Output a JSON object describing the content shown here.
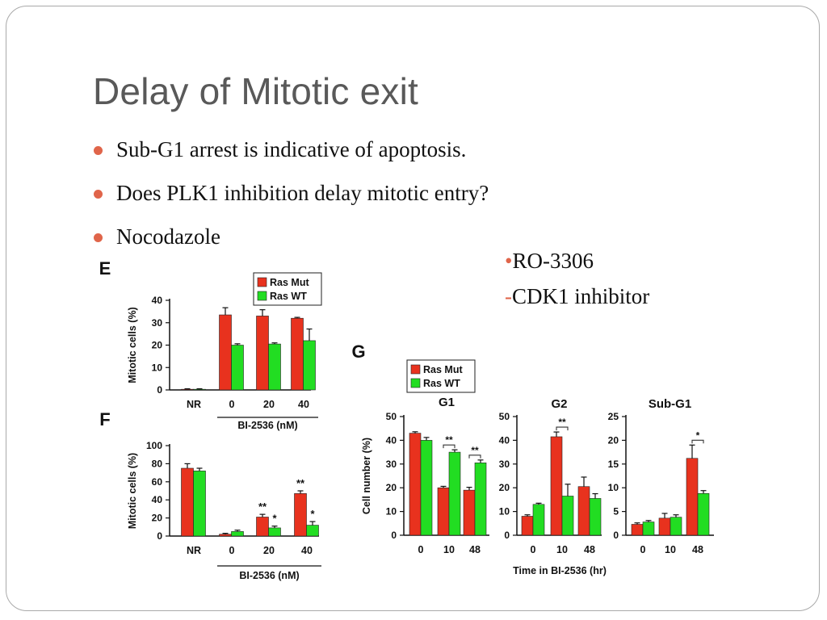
{
  "slide": {
    "title": "Delay of Mitotic exit",
    "bullets": [
      "Sub-G1 arrest is indicative of apoptosis.",
      "Does PLK1 inhibition delay mitotic entry?",
      "Nocodazole"
    ],
    "side_note": {
      "line1_marker": "•",
      "line1": "RO-3306",
      "line2_marker": "-",
      "line2": "CDK1 inhibitor"
    }
  },
  "colors": {
    "ras_mut": "#e8321e",
    "ras_wt": "#22dd22",
    "accent": "#e0654a",
    "title": "#595959"
  },
  "chart_data": [
    {
      "id": "E",
      "panel_label": "E",
      "type": "bar",
      "categories": [
        "NR",
        "0",
        "20",
        "40"
      ],
      "xlabel": "BI-2536 (nM)",
      "ylabel": "Mitotic cells (%)",
      "ylim": [
        0,
        40
      ],
      "yticks": [
        "0",
        "10",
        "20",
        "30",
        "40"
      ],
      "legend": [
        "Ras Mut",
        "Ras WT"
      ],
      "series": [
        {
          "name": "Ras Mut",
          "values": [
            0.3,
            33.5,
            33,
            32
          ],
          "errors": [
            0.2,
            3.2,
            2.8,
            0.4
          ]
        },
        {
          "name": "Ras WT",
          "values": [
            0.3,
            20,
            20.5,
            22
          ],
          "errors": [
            0.2,
            0.6,
            0.5,
            5.2
          ]
        }
      ],
      "annotations": []
    },
    {
      "id": "F",
      "panel_label": "F",
      "type": "bar",
      "categories": [
        "NR",
        "0",
        "20",
        "40"
      ],
      "xlabel": "BI-2536 (nM)",
      "ylabel": "Mitotic cells (%)",
      "ylim": [
        0,
        100
      ],
      "yticks": [
        "0",
        "20",
        "40",
        "60",
        "80",
        "100"
      ],
      "series": [
        {
          "name": "Ras Mut",
          "values": [
            75,
            2,
            21,
            47
          ],
          "errors": [
            5,
            1,
            3,
            3
          ]
        },
        {
          "name": "Ras WT",
          "values": [
            72,
            5,
            9,
            12
          ],
          "errors": [
            3,
            1.5,
            2,
            4
          ]
        }
      ],
      "annotations": [
        {
          "category": 2,
          "series": 0,
          "text": "**"
        },
        {
          "category": 2,
          "series": 1,
          "text": "*"
        },
        {
          "category": 3,
          "series": 0,
          "text": "**"
        },
        {
          "category": 3,
          "series": 1,
          "text": "*"
        }
      ]
    },
    {
      "id": "G1",
      "panel_label": "G",
      "type": "bar",
      "title": "G1",
      "categories": [
        "0",
        "10",
        "48"
      ],
      "ylabel": "Cell number (%)",
      "ylim": [
        0,
        50
      ],
      "yticks": [
        "0",
        "10",
        "20",
        "30",
        "40",
        "50"
      ],
      "legend": [
        "Ras Mut",
        "Ras WT"
      ],
      "series": [
        {
          "name": "Ras Mut",
          "values": [
            43,
            20,
            19
          ],
          "errors": [
            0.6,
            0.6,
            1.2
          ]
        },
        {
          "name": "Ras WT",
          "values": [
            40,
            35,
            30.5
          ],
          "errors": [
            1.2,
            1.0,
            1.2
          ]
        }
      ],
      "brackets": [
        {
          "category": 1,
          "text": "**"
        },
        {
          "category": 2,
          "text": "**"
        }
      ]
    },
    {
      "id": "G2",
      "type": "bar",
      "title": "G2",
      "categories": [
        "0",
        "10",
        "48"
      ],
      "xlabel": "Time in BI-2536 (hr)",
      "ylim": [
        0,
        50
      ],
      "yticks": [
        "0",
        "10",
        "20",
        "30",
        "40",
        "50"
      ],
      "series": [
        {
          "name": "Ras Mut",
          "values": [
            8,
            41.5,
            20.5
          ],
          "errors": [
            0.6,
            2.0,
            4.0
          ]
        },
        {
          "name": "Ras WT",
          "values": [
            13,
            16.5,
            15.5
          ],
          "errors": [
            0.5,
            5.0,
            2.0
          ]
        }
      ],
      "brackets": [
        {
          "category": 1,
          "text": "**"
        }
      ]
    },
    {
      "id": "SubG1",
      "type": "bar",
      "title": "Sub-G1",
      "categories": [
        "0",
        "10",
        "48"
      ],
      "ylim": [
        0,
        25
      ],
      "yticks": [
        "0",
        "5",
        "10",
        "15",
        "20",
        "25"
      ],
      "series": [
        {
          "name": "Ras Mut",
          "values": [
            2.3,
            3.6,
            16.2
          ],
          "errors": [
            0.3,
            1.0,
            2.8
          ]
        },
        {
          "name": "Ras WT",
          "values": [
            2.8,
            3.8,
            8.8
          ],
          "errors": [
            0.3,
            0.5,
            0.6
          ]
        }
      ],
      "brackets": [
        {
          "category": 2,
          "text": "*"
        }
      ]
    }
  ]
}
